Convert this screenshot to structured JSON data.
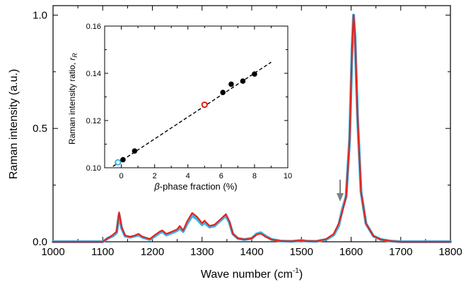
{
  "chart_data": [
    {
      "type": "line",
      "xlabel_base": "Wave number (cm",
      "xlabel_sup": "-1",
      "xlabel_tail": ")",
      "ylabel": "Raman intensity (a.u.)",
      "xlim": [
        1000,
        1800
      ],
      "ylim": [
        0,
        1.0
      ],
      "xticks": [
        "1000",
        "1100",
        "1200",
        "1300",
        "1400",
        "1500",
        "1600",
        "1700",
        "1800"
      ],
      "yticks": [
        "0.0",
        "0.5",
        "1.0"
      ],
      "grid": false,
      "annotations": [
        "arrow at ~1582 cm-1 pointing to shoulder"
      ],
      "series": [
        {
          "color": "#3cb4e6",
          "x": [
            1000,
            1100,
            1110,
            1120,
            1128,
            1133,
            1138,
            1145,
            1155,
            1165,
            1172,
            1180,
            1195,
            1205,
            1215,
            1220,
            1228,
            1240,
            1250,
            1255,
            1262,
            1270,
            1280,
            1290,
            1300,
            1305,
            1315,
            1325,
            1335,
            1348,
            1355,
            1362,
            1372,
            1385,
            1400,
            1410,
            1418,
            1428,
            1440,
            1460,
            1480,
            1500,
            1510,
            1530,
            1550,
            1565,
            1575,
            1582,
            1590,
            1597,
            1602,
            1605,
            1608,
            1613,
            1620,
            1630,
            1645,
            1660,
            1680,
            1700,
            1800
          ],
          "y": [
            0.0,
            0.0,
            0.015,
            0.025,
            0.04,
            0.12,
            0.06,
            0.025,
            0.02,
            0.025,
            0.03,
            0.02,
            0.01,
            0.025,
            0.04,
            0.045,
            0.03,
            0.04,
            0.05,
            0.06,
            0.045,
            0.08,
            0.115,
            0.1,
            0.075,
            0.085,
            0.065,
            0.07,
            0.09,
            0.115,
            0.085,
            0.035,
            0.015,
            0.01,
            0.015,
            0.035,
            0.04,
            0.025,
            0.01,
            0.003,
            0.002,
            0.006,
            0.003,
            0.002,
            0.01,
            0.03,
            0.07,
            0.14,
            0.2,
            0.45,
            0.85,
            1.0,
            0.9,
            0.55,
            0.22,
            0.08,
            0.025,
            0.01,
            0.003,
            0.0,
            0.0
          ]
        },
        {
          "color": "#e8211a",
          "x": [
            1000,
            1100,
            1110,
            1120,
            1128,
            1133,
            1138,
            1145,
            1155,
            1165,
            1172,
            1180,
            1195,
            1205,
            1215,
            1220,
            1228,
            1240,
            1250,
            1255,
            1262,
            1270,
            1280,
            1290,
            1300,
            1305,
            1315,
            1325,
            1335,
            1348,
            1355,
            1362,
            1372,
            1385,
            1400,
            1410,
            1418,
            1428,
            1440,
            1460,
            1480,
            1500,
            1510,
            1530,
            1550,
            1565,
            1575,
            1582,
            1590,
            1597,
            1602,
            1605,
            1608,
            1613,
            1620,
            1630,
            1645,
            1660,
            1680,
            1700,
            1800
          ],
          "y": [
            0.0,
            0.0,
            0.015,
            0.03,
            0.045,
            0.13,
            0.065,
            0.028,
            0.022,
            0.028,
            0.035,
            0.022,
            0.012,
            0.03,
            0.045,
            0.05,
            0.035,
            0.045,
            0.055,
            0.07,
            0.05,
            0.09,
            0.127,
            0.11,
            0.082,
            0.093,
            0.07,
            0.075,
            0.095,
            0.122,
            0.09,
            0.035,
            0.015,
            0.01,
            0.015,
            0.032,
            0.036,
            0.022,
            0.01,
            0.003,
            0.002,
            0.006,
            0.003,
            0.002,
            0.012,
            0.035,
            0.08,
            0.13,
            0.2,
            0.45,
            0.86,
            1.0,
            0.9,
            0.55,
            0.22,
            0.08,
            0.025,
            0.01,
            0.003,
            0.0,
            0.0
          ]
        }
      ]
    },
    {
      "type": "scatter",
      "xlabel_greek": "β",
      "xlabel_rest": "-phase fraction (%)",
      "ylabel_base": "Raman intensity ratio, ",
      "ylabel_var": "r",
      "ylabel_sub": "R",
      "xlim": [
        -1,
        10
      ],
      "ylim": [
        0.1,
        0.16
      ],
      "xticks": [
        "0",
        "2",
        "4",
        "6",
        "8",
        "10"
      ],
      "yticks": [
        "0.10",
        "0.12",
        "0.14",
        "0.16"
      ],
      "points": [
        {
          "x": -0.2,
          "y": 0.1023,
          "style": "open",
          "color": "#3cb4e6"
        },
        {
          "x": 0.1,
          "y": 0.1034,
          "style": "filled",
          "color": "#000000"
        },
        {
          "x": 0.8,
          "y": 0.1071,
          "style": "filled",
          "color": "#000000"
        },
        {
          "x": 5.0,
          "y": 0.1267,
          "style": "open",
          "color": "#e8211a"
        },
        {
          "x": 6.1,
          "y": 0.1319,
          "style": "filled",
          "color": "#000000"
        },
        {
          "x": 6.6,
          "y": 0.1354,
          "style": "filled",
          "color": "#000000"
        },
        {
          "x": 7.3,
          "y": 0.1367,
          "style": "filled",
          "color": "#000000"
        },
        {
          "x": 8.0,
          "y": 0.1397,
          "style": "filled",
          "color": "#000000"
        }
      ],
      "fit_line": {
        "x": [
          -0.5,
          9.0
        ],
        "y": [
          0.1006,
          0.1447
        ]
      }
    }
  ]
}
